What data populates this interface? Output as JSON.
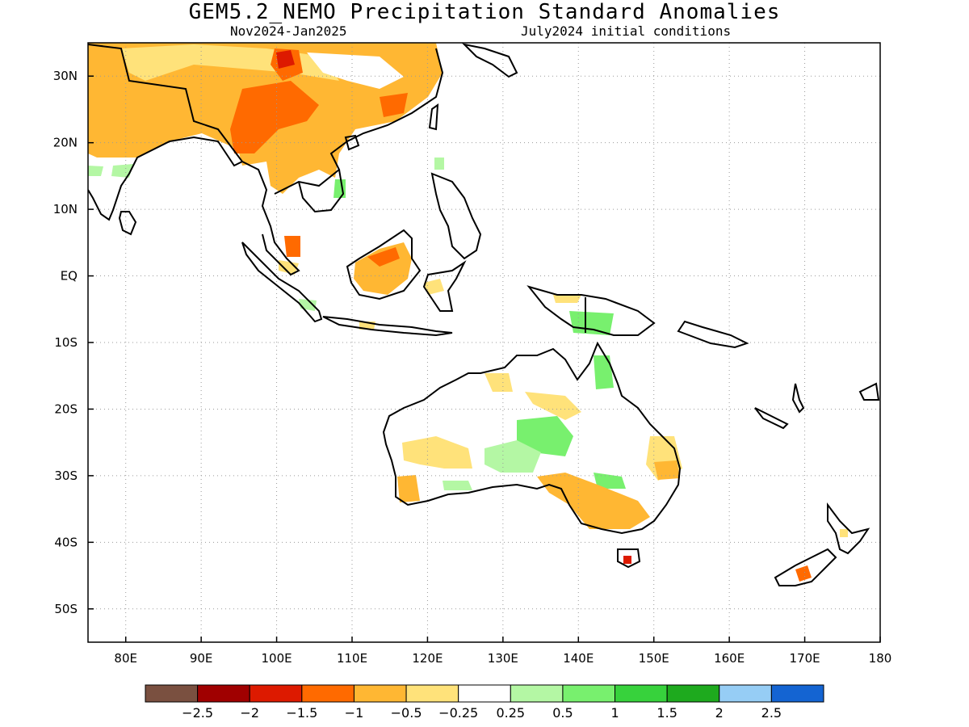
{
  "title": "GEM5.2_NEMO Precipitation Standard Anomalies",
  "subtitle_left": "Nov2024-Jan2025",
  "subtitle_right": "July2024 initial conditions",
  "map": {
    "lon_range": [
      75,
      180
    ],
    "lat_range": [
      -55,
      35
    ],
    "lat_ticks": [
      {
        "value": 30,
        "label": "30N"
      },
      {
        "value": 20,
        "label": "20N"
      },
      {
        "value": 10,
        "label": "10N"
      },
      {
        "value": 0,
        "label": "EQ"
      },
      {
        "value": -10,
        "label": "10S"
      },
      {
        "value": -20,
        "label": "20S"
      },
      {
        "value": -30,
        "label": "30S"
      },
      {
        "value": -40,
        "label": "40S"
      },
      {
        "value": -50,
        "label": "50S"
      }
    ],
    "lon_ticks": [
      {
        "value": 80,
        "label": "80E"
      },
      {
        "value": 90,
        "label": "90E"
      },
      {
        "value": 100,
        "label": "100E"
      },
      {
        "value": 110,
        "label": "110E"
      },
      {
        "value": 120,
        "label": "120E"
      },
      {
        "value": 130,
        "label": "130E"
      },
      {
        "value": 140,
        "label": "140E"
      },
      {
        "value": 150,
        "label": "150E"
      },
      {
        "value": 160,
        "label": "160E"
      },
      {
        "value": 170,
        "label": "170E"
      },
      {
        "value": 180,
        "label": "180"
      }
    ]
  },
  "colorbar": {
    "colors": [
      "#7a5040",
      "#a00000",
      "#dd1a00",
      "#ff6a00",
      "#ffb733",
      "#ffe27a",
      "#ffffff",
      "#b4f7a4",
      "#78f06e",
      "#37d23c",
      "#1eaa1e",
      "#96cdf5",
      "#1464d2"
    ],
    "labels": [
      "-2.5",
      "-2",
      "-1.5",
      "-1",
      "-0.5",
      "-0.25",
      "0.25",
      "0.5",
      "1",
      "1.5",
      "2",
      "2.5"
    ]
  }
}
